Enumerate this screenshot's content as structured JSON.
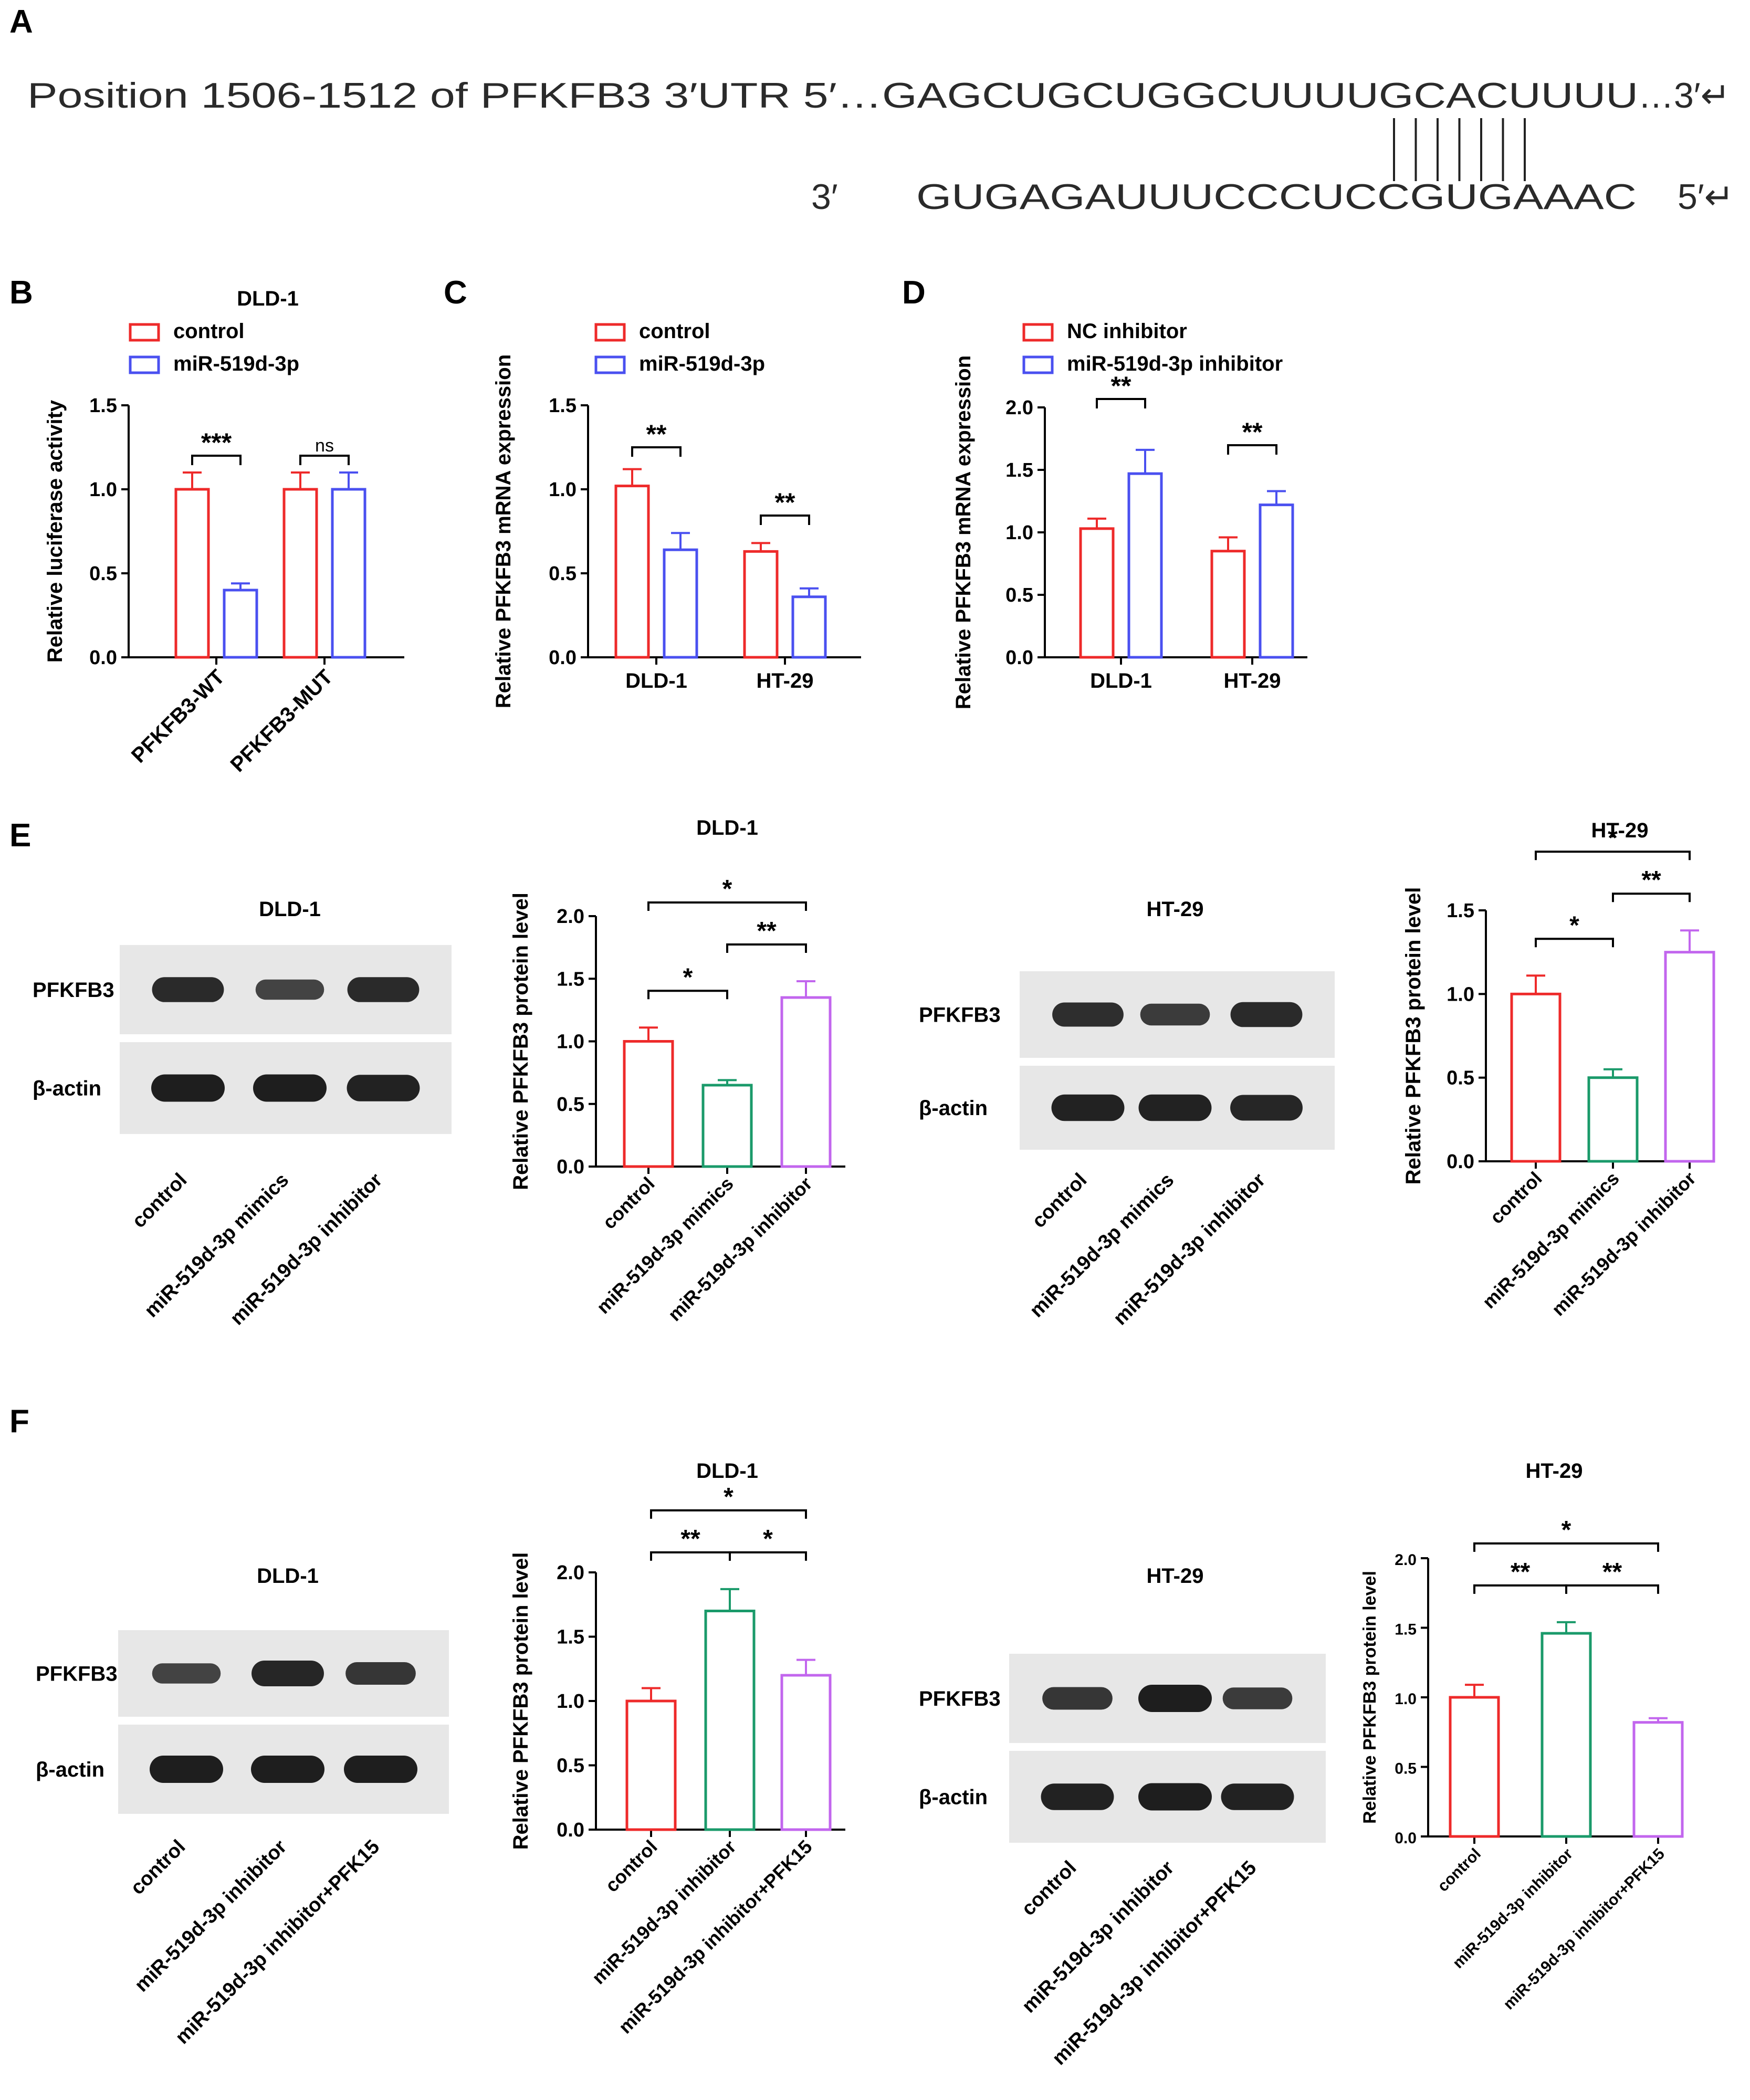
{
  "panel_letters": [
    "A",
    "B",
    "C",
    "D",
    "E",
    "F"
  ],
  "sequence": {
    "prefix": "Position 1506-1512 of PFKFB3 3′UTR 5′…",
    "seq_top": "GAGCUGCUGGCUUUUGCACUUUU",
    "suffix": "…3′↵",
    "mirna_3": "3′",
    "seq_bottom": "GUGAGAUUUCCCUCCGUGAAAC",
    "mirna_5": "5′↵",
    "pairing_count": 7
  },
  "colors": {
    "red": "#ee2a2a",
    "blue": "#4a50f0",
    "green": "#1a9a6a",
    "purple": "#c266ee",
    "blot_bg": "#e7e7e7",
    "band": "#1e1e1e"
  },
  "blots": [
    {
      "title": "DLD-1",
      "rows": [
        {
          "label": "PFKFB3",
          "intensities": [
            0.85,
            0.55,
            0.85
          ]
        },
        {
          "label": "β-actin",
          "intensities": [
            1.0,
            1.0,
            0.95
          ]
        }
      ],
      "lanes": [
        "control",
        "miR-519d-3p mimics",
        "miR-519d-3p inhibitor"
      ]
    },
    {
      "title": "HT-29",
      "rows": [
        {
          "label": "PFKFB3",
          "intensities": [
            0.8,
            0.65,
            0.85
          ]
        },
        {
          "label": "β-actin",
          "intensities": [
            0.95,
            0.95,
            0.9
          ]
        }
      ],
      "lanes": [
        "control",
        "miR-519d-3p mimics",
        "miR-519d-3p inhibitor"
      ]
    },
    {
      "title": "DLD-1",
      "rows": [
        {
          "label": "PFKFB3",
          "intensities": [
            0.55,
            0.9,
            0.7
          ]
        },
        {
          "label": "β-actin",
          "intensities": [
            1.0,
            1.0,
            1.0
          ]
        }
      ],
      "lanes": [
        "control",
        "miR-519d-3p inhibitor",
        "miR-519d-3p inhibitor+PFK15"
      ]
    },
    {
      "title": "HT-29",
      "rows": [
        {
          "label": "PFKFB3",
          "intensities": [
            0.7,
            1.0,
            0.65
          ]
        },
        {
          "label": "β-actin",
          "intensities": [
            0.95,
            1.0,
            0.95
          ]
        }
      ],
      "lanes": [
        "control",
        "miR-519d-3p inhibitor",
        "miR-519d-3p inhibitor+PFK15"
      ]
    }
  ],
  "chart_data": [
    {
      "id": "B",
      "type": "bar",
      "title": "DLD-1",
      "ylabel": "Relative luciferase activity",
      "ylim": [
        0,
        1.5
      ],
      "yticks": [
        "0.0",
        "0.5",
        "1.0",
        "1.5"
      ],
      "categories": [
        "PFKFB3-WT",
        "PFKFB3-MUT"
      ],
      "series": [
        {
          "name": "control",
          "color": "#ee2a2a",
          "values": [
            1.0,
            1.0
          ],
          "errors": [
            0.1,
            0.1
          ]
        },
        {
          "name": "miR-519d-3p",
          "color": "#4a50f0",
          "values": [
            0.4,
            1.0
          ],
          "errors": [
            0.04,
            0.1
          ]
        }
      ],
      "annotations": [
        {
          "text": "***",
          "cat": 0
        },
        {
          "text": "ns",
          "cat": 1
        }
      ]
    },
    {
      "id": "C",
      "type": "bar",
      "title": "",
      "ylabel": "Relative PFKFB3 mRNA expression",
      "ylim": [
        0,
        1.5
      ],
      "yticks": [
        "0.0",
        "0.5",
        "1.0",
        "1.5"
      ],
      "categories": [
        "DLD-1",
        "HT-29"
      ],
      "series": [
        {
          "name": "control",
          "color": "#ee2a2a",
          "values": [
            1.02,
            0.63
          ],
          "errors": [
            0.1,
            0.05
          ]
        },
        {
          "name": "miR-519d-3p",
          "color": "#4a50f0",
          "values": [
            0.64,
            0.36
          ],
          "errors": [
            0.1,
            0.05
          ]
        }
      ],
      "annotations": [
        {
          "text": "**",
          "cat": 0
        },
        {
          "text": "**",
          "cat": 1
        }
      ]
    },
    {
      "id": "D",
      "type": "bar",
      "title": "",
      "ylabel": "Relative PFKFB3 mRNA expression",
      "ylim": [
        0,
        2.0
      ],
      "yticks": [
        "0.0",
        "0.5",
        "1.0",
        "1.5",
        "2.0"
      ],
      "categories": [
        "DLD-1",
        "HT-29"
      ],
      "series": [
        {
          "name": "NC inhibitor",
          "color": "#ee2a2a",
          "values": [
            1.03,
            0.85
          ],
          "errors": [
            0.08,
            0.11
          ]
        },
        {
          "name": "miR-519d-3p inhibitor",
          "color": "#4a50f0",
          "values": [
            1.47,
            1.22
          ],
          "errors": [
            0.19,
            0.11
          ]
        }
      ],
      "annotations": [
        {
          "text": "**",
          "cat": 0
        },
        {
          "text": "**",
          "cat": 1
        }
      ]
    },
    {
      "id": "E1",
      "type": "bar",
      "title": "DLD-1",
      "ylabel": "Relative PFKFB3 protein level",
      "ylim": [
        0,
        2.0
      ],
      "yticks": [
        "0.0",
        "0.5",
        "1.0",
        "1.5",
        "2.0"
      ],
      "categories": [
        "control",
        "miR-519d-3p mimics",
        "miR-519d-3p inhibitor"
      ],
      "values": [
        1.0,
        0.65,
        1.35
      ],
      "errors": [
        0.11,
        0.04,
        0.13
      ],
      "colors": [
        "#ee2a2a",
        "#1a9a6a",
        "#c266ee"
      ],
      "brackets": [
        {
          "a": 0,
          "b": 1,
          "text": "*"
        },
        {
          "a": 1,
          "b": 2,
          "text": "**"
        },
        {
          "a": 0,
          "b": 2,
          "text": "*"
        }
      ]
    },
    {
      "id": "E2",
      "type": "bar",
      "title": "HT-29",
      "ylabel": "Relative PFKFB3 protein level",
      "ylim": [
        0,
        1.5
      ],
      "yticks": [
        "0.0",
        "0.5",
        "1.0",
        "1.5"
      ],
      "categories": [
        "control",
        "miR-519d-3p mimics",
        "miR-519d-3p inhibitor"
      ],
      "values": [
        1.0,
        0.5,
        1.25
      ],
      "errors": [
        0.11,
        0.05,
        0.13
      ],
      "colors": [
        "#ee2a2a",
        "#1a9a6a",
        "#c266ee"
      ],
      "brackets": [
        {
          "a": 0,
          "b": 1,
          "text": "*"
        },
        {
          "a": 1,
          "b": 2,
          "text": "**"
        },
        {
          "a": 0,
          "b": 2,
          "text": "*"
        }
      ]
    },
    {
      "id": "F1",
      "type": "bar",
      "title": "DLD-1",
      "ylabel": "Relative PFKFB3 protein level",
      "ylim": [
        0,
        2.0
      ],
      "yticks": [
        "0.0",
        "0.5",
        "1.0",
        "1.5",
        "2.0"
      ],
      "categories": [
        "control",
        "miR-519d-3p inhibitor",
        "miR-519d-3p inhibitor+PFK15"
      ],
      "values": [
        1.0,
        1.7,
        1.2
      ],
      "errors": [
        0.1,
        0.17,
        0.12
      ],
      "colors": [
        "#ee2a2a",
        "#1a9a6a",
        "#c266ee"
      ],
      "brackets": [
        {
          "a": 0,
          "b": 1,
          "text": "**"
        },
        {
          "a": 1,
          "b": 2,
          "text": "*"
        },
        {
          "a": 0,
          "b": 2,
          "text": "*"
        }
      ]
    },
    {
      "id": "F2",
      "type": "bar",
      "title": "HT-29",
      "ylabel": "Relative PFKFB3 protein level",
      "ylim": [
        0,
        2.0
      ],
      "yticks": [
        "0.0",
        "0.5",
        "1.0",
        "1.5",
        "2.0"
      ],
      "categories": [
        "control",
        "miR-519d-3p inhibitor",
        "miR-519d-3p inhibitor+PFK15"
      ],
      "values": [
        1.0,
        1.46,
        0.82
      ],
      "errors": [
        0.09,
        0.08,
        0.03
      ],
      "colors": [
        "#ee2a2a",
        "#1a9a6a",
        "#c266ee"
      ],
      "brackets": [
        {
          "a": 0,
          "b": 1,
          "text": "**"
        },
        {
          "a": 1,
          "b": 2,
          "text": "**"
        },
        {
          "a": 0,
          "b": 2,
          "text": "*"
        }
      ]
    }
  ]
}
